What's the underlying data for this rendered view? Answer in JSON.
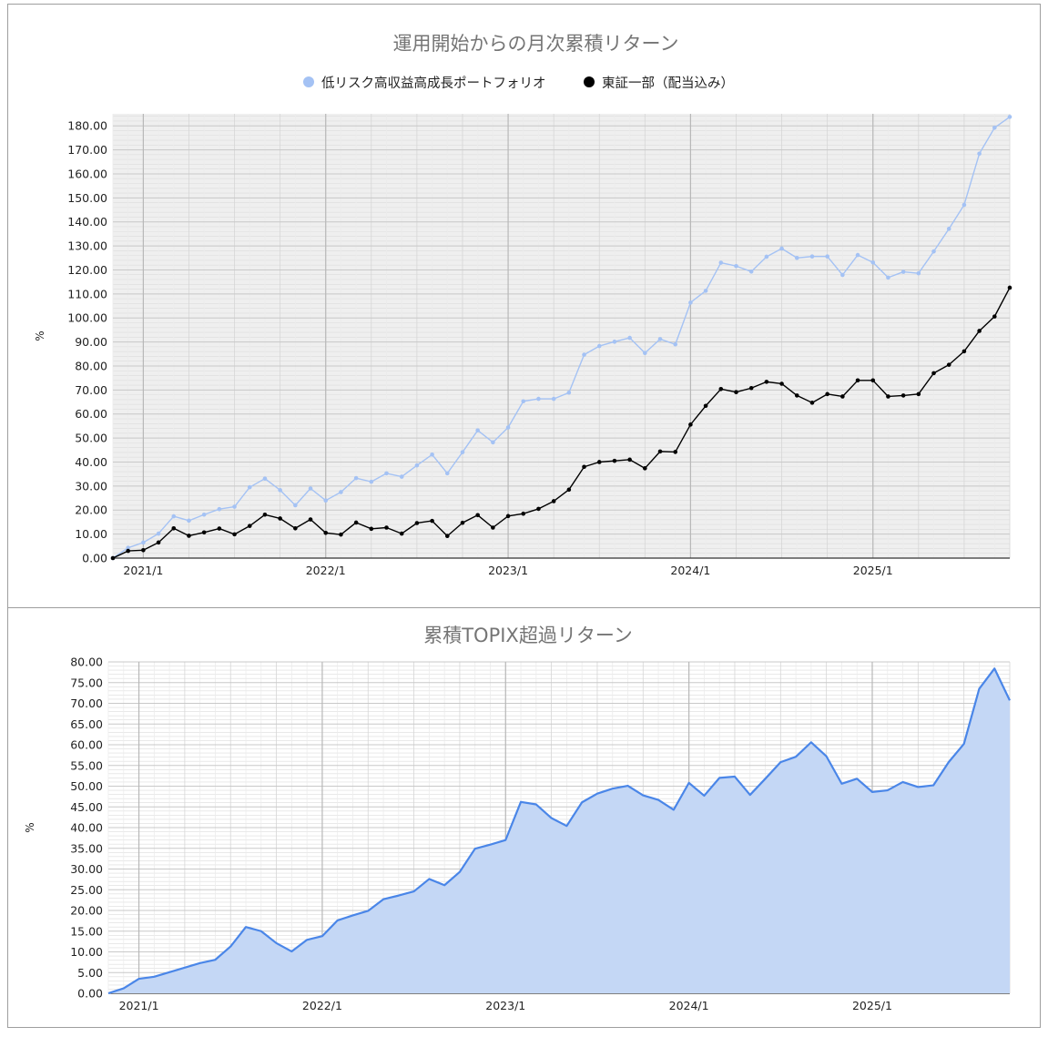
{
  "chart_data": [
    {
      "type": "line",
      "title": "運用開始からの月次累積リターン",
      "ylabel": "%",
      "ylim": [
        0,
        185
      ],
      "y_ticks": [
        "0.00",
        "10.00",
        "20.00",
        "30.00",
        "40.00",
        "50.00",
        "60.00",
        "70.00",
        "80.00",
        "90.00",
        "100.00",
        "110.00",
        "120.00",
        "130.00",
        "140.00",
        "150.00",
        "160.00",
        "170.00",
        "180.00"
      ],
      "x_start": "2020-11",
      "x_end": "2025-10",
      "x_ticks": [
        {
          "label": "2021/1",
          "index": 2
        },
        {
          "label": "2022/1",
          "index": 14
        },
        {
          "label": "2023/1",
          "index": 26
        },
        {
          "label": "2024/1",
          "index": 38
        },
        {
          "label": "2025/1",
          "index": 50
        }
      ],
      "legend_position": "top",
      "grid": true,
      "series": [
        {
          "name": "低リスク高収益高成長ポートフォリオ",
          "color": "#a4c2f4",
          "values": [
            0,
            4.3,
            6.5,
            10.2,
            17.4,
            15.6,
            18.1,
            20.4,
            21.4,
            29.5,
            33.1,
            28.3,
            22.0,
            29.0,
            24.0,
            27.5,
            33.3,
            31.8,
            35.3,
            33.9,
            38.6,
            43.1,
            35.3,
            44.1,
            53.2,
            48.2,
            54.4,
            65.3,
            66.3,
            66.3,
            68.9,
            84.7,
            88.3,
            90.1,
            91.7,
            85.4,
            91.2,
            89.0,
            106.4,
            111.3,
            123.0,
            121.6,
            119.3,
            125.5,
            128.9,
            125.0,
            125.6,
            125.6,
            117.9,
            126.2,
            123.1,
            116.8,
            119.2,
            118.6,
            127.7,
            137.1,
            147.1,
            168.4,
            179.2,
            183.7
          ]
        },
        {
          "name": "東証一部（配当込み）",
          "color": "#000000",
          "values": [
            0,
            3.0,
            3.3,
            6.5,
            12.4,
            9.3,
            10.7,
            12.3,
            9.9,
            13.4,
            18.1,
            16.5,
            12.4,
            16.1,
            10.5,
            9.8,
            14.8,
            12.2,
            12.7,
            10.2,
            14.6,
            15.5,
            9.2,
            14.7,
            17.9,
            12.7,
            17.5,
            18.5,
            20.5,
            23.7,
            28.5,
            38.0,
            40.0,
            40.5,
            41.0,
            37.4,
            44.4,
            44.2,
            55.6,
            63.4,
            70.4,
            69.1,
            70.8,
            73.4,
            72.6,
            67.7,
            64.7,
            68.3,
            67.3,
            74.0,
            74.0,
            67.3,
            67.7,
            68.3,
            77.0,
            80.5,
            86.1,
            94.6,
            100.6,
            112.6
          ]
        }
      ]
    },
    {
      "type": "area",
      "title": "累積TOPIX超過リターン",
      "ylabel": "%",
      "ylim": [
        0,
        80
      ],
      "y_ticks": [
        "0.00",
        "5.00",
        "10.00",
        "15.00",
        "20.00",
        "25.00",
        "30.00",
        "35.00",
        "40.00",
        "45.00",
        "50.00",
        "55.00",
        "60.00",
        "65.00",
        "70.00",
        "75.00",
        "80.00"
      ],
      "x_start": "2020-11",
      "x_end": "2025-10",
      "x_ticks": [
        {
          "label": "2021/1",
          "index": 2
        },
        {
          "label": "2022/1",
          "index": 14
        },
        {
          "label": "2023/1",
          "index": 26
        },
        {
          "label": "2024/1",
          "index": 38
        },
        {
          "label": "2025/1",
          "index": 50
        }
      ],
      "grid": true,
      "series": [
        {
          "name": "",
          "color": "#4a86e8",
          "fill": "#c4d7f5",
          "values": [
            0,
            1.2,
            3.5,
            4.0,
            5.1,
            6.2,
            7.3,
            8.1,
            11.3,
            16.0,
            15.0,
            12.1,
            10.1,
            12.9,
            13.8,
            17.6,
            18.8,
            19.9,
            22.7,
            23.6,
            24.6,
            27.6,
            26.1,
            29.3,
            34.9,
            35.9,
            37.0,
            46.2,
            45.6,
            42.3,
            40.4,
            46.1,
            48.2,
            49.4,
            50.1,
            47.8,
            46.7,
            44.3,
            50.8,
            47.7,
            52.0,
            52.3,
            47.9,
            51.8,
            55.8,
            57.1,
            60.6,
            57.2,
            50.6,
            51.8,
            48.6,
            49.0,
            51.0,
            49.8,
            50.2,
            55.8,
            60.2,
            73.5,
            78.4,
            70.7
          ]
        }
      ]
    }
  ]
}
